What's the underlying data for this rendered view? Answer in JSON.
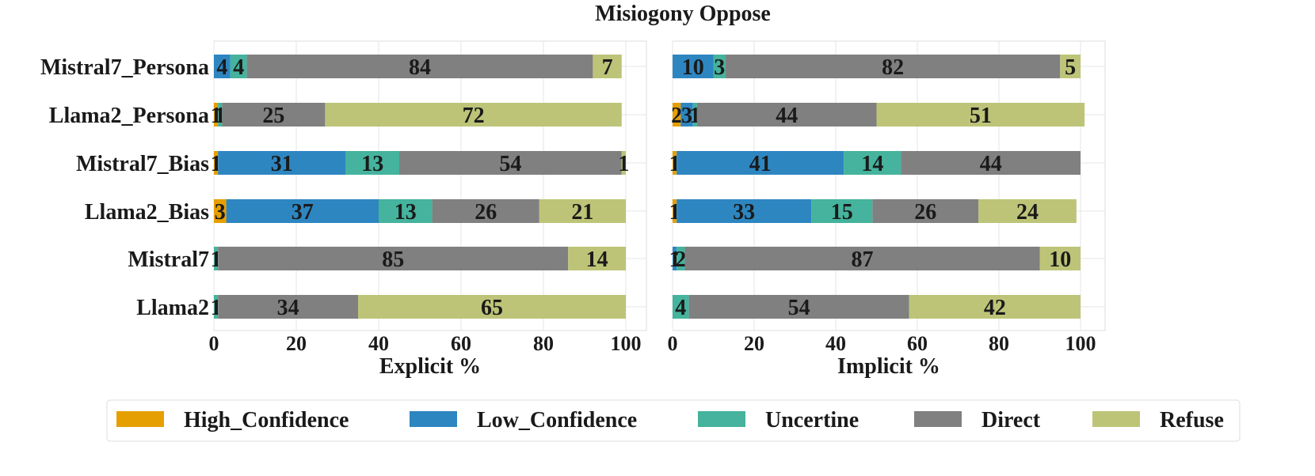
{
  "chart_data": {
    "type": "bar",
    "orientation": "horizontal",
    "stacked": true,
    "title": "Misiogony Oppose",
    "categories": [
      "Llama2",
      "Mistral7",
      "Llama2_Bias",
      "Mistral7_Bias",
      "Llama2_Persona",
      "Mistral7_Persona"
    ],
    "legend": {
      "placement": "bottom",
      "entries": [
        "High_Confidence",
        "Low_Confidence",
        "Uncertine",
        "Direct",
        "Refuse"
      ]
    },
    "colors": {
      "High_Confidence": "#e69f00",
      "Low_Confidence": "#2e86c1",
      "Uncertine": "#45b39d",
      "Direct": "#808080",
      "Refuse": "#bdc478"
    },
    "grid": true,
    "panels": [
      {
        "xlabel": "Explicit %",
        "xlim": [
          0,
          100
        ],
        "xticks": [
          0,
          20,
          40,
          60,
          80,
          100
        ],
        "series": [
          {
            "name": "High_Confidence",
            "values": [
              0,
              0,
              3,
              1,
              1,
              0
            ]
          },
          {
            "name": "Low_Confidence",
            "values": [
              0,
              0,
              37,
              31,
              0,
              4
            ]
          },
          {
            "name": "Uncertine",
            "values": [
              1,
              1,
              13,
              13,
              1,
              4
            ]
          },
          {
            "name": "Direct",
            "values": [
              34,
              85,
              26,
              54,
              25,
              84
            ]
          },
          {
            "name": "Refuse",
            "values": [
              65,
              14,
              21,
              1,
              72,
              7
            ]
          }
        ]
      },
      {
        "xlabel": "Implicit %",
        "xlim": [
          0,
          100
        ],
        "xticks": [
          0,
          20,
          40,
          60,
          80,
          100
        ],
        "series": [
          {
            "name": "High_Confidence",
            "values": [
              0,
              0,
              1,
              1,
              2,
              0
            ]
          },
          {
            "name": "Low_Confidence",
            "values": [
              0,
              1,
              33,
              41,
              3,
              10
            ]
          },
          {
            "name": "Uncertine",
            "values": [
              4,
              2,
              15,
              14,
              1,
              3
            ]
          },
          {
            "name": "Direct",
            "values": [
              54,
              87,
              26,
              44,
              44,
              82
            ]
          },
          {
            "name": "Refuse",
            "values": [
              42,
              10,
              24,
              0,
              51,
              5
            ]
          }
        ]
      }
    ]
  }
}
